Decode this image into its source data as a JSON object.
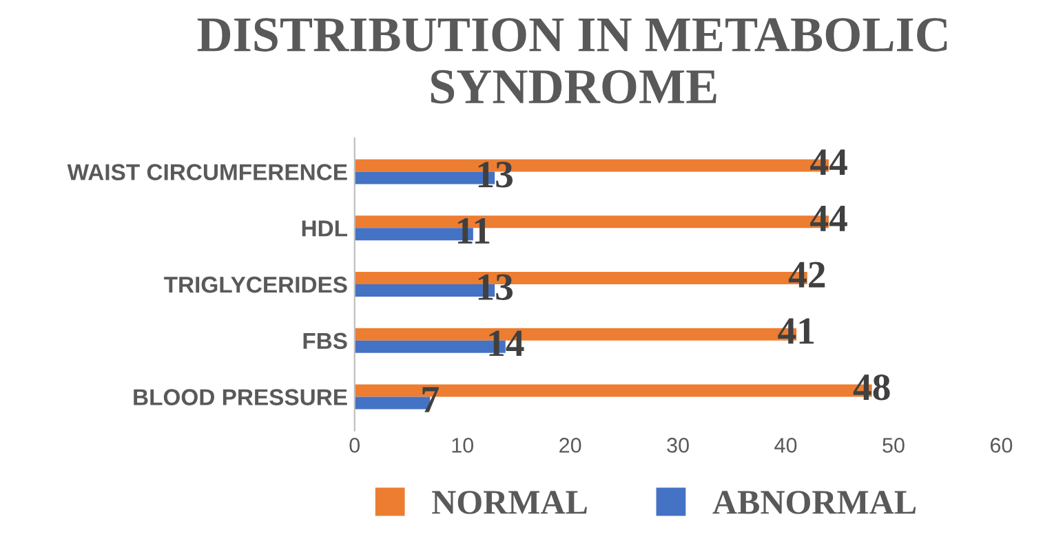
{
  "chart_data": {
    "type": "bar",
    "orientation": "horizontal",
    "title": "DISTRIBUTION IN METABOLIC SYNDROME",
    "categories": [
      "WAIST CIRCUMFERENCE",
      "HDL",
      "TRIGLYCERIDES",
      "FBS",
      "BLOOD PRESSURE"
    ],
    "series": [
      {
        "name": "NORMAL",
        "color": "#ed7d31",
        "values": [
          44,
          44,
          42,
          41,
          48
        ]
      },
      {
        "name": "ABNORMAL",
        "color": "#4472c4",
        "values": [
          13,
          11,
          13,
          14,
          7
        ]
      }
    ],
    "xlim": [
      0,
      60
    ],
    "xticks": [
      0,
      10,
      20,
      30,
      40,
      50,
      60
    ],
    "grid": false,
    "legend": "bottom",
    "data_labels": true
  }
}
